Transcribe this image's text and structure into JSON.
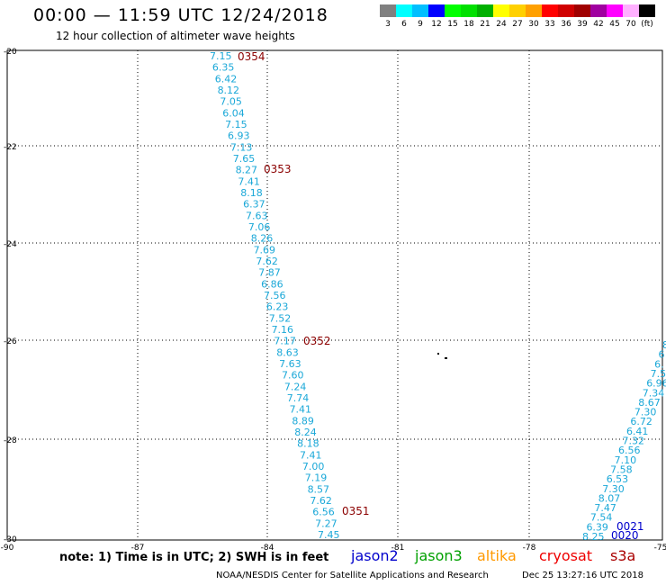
{
  "header": {
    "title": "00:00 — 11:59 UTC 12/24/2018",
    "subtitle": "12 hour collection of altimeter wave heights"
  },
  "legend": {
    "colors": [
      "#808080",
      "#00ffff",
      "#00bfff",
      "#0000ff",
      "#00ff00",
      "#00e000",
      "#00b000",
      "#ffff00",
      "#ffd000",
      "#ffa000",
      "#ff0000",
      "#d00000",
      "#a00000",
      "#a000a0",
      "#ff00ff",
      "#ffb0ff",
      "#000000"
    ],
    "labels": [
      "3",
      "6",
      "9",
      "12",
      "15",
      "18",
      "21",
      "24",
      "27",
      "30",
      "33",
      "36",
      "39",
      "42",
      "45",
      "70",
      "(ft)"
    ]
  },
  "axes": {
    "lat_labels": [
      "-20",
      "-22",
      "-24",
      "-26",
      "-28",
      "-30"
    ],
    "lon_labels": [
      "-90",
      "-87",
      "-84",
      "-81",
      "-78",
      "-75"
    ]
  },
  "tracks": {
    "track_a": [
      "7.15",
      "6.35",
      "6.42",
      "8.12",
      "7.05",
      "6.04",
      "7.15",
      "6.93",
      "7.13",
      "7.65",
      "8.27",
      "7.41",
      "8.18",
      "6.37",
      "7.63",
      "7.06",
      "8.26",
      "7.69",
      "7.62",
      "7.87",
      "6.86",
      "7.56",
      "6.23",
      "7.52",
      "7.16",
      "7.17",
      "8.63",
      "7.63",
      "7.60",
      "7.24",
      "7.74",
      "7.41",
      "8.89",
      "8.24",
      "8.18",
      "7.41",
      "7.00",
      "7.19",
      "8.57",
      "7.62",
      "6.56",
      "7.27",
      "7.45"
    ],
    "track_a_times": [
      "0354",
      "0353",
      "0352",
      "0351"
    ],
    "track_b": [
      "8",
      "6",
      "6.",
      "7.5",
      "6.96",
      "7.34",
      "8.67",
      "7.30",
      "6.72",
      "6.41",
      "7.32",
      "6.56",
      "7.10",
      "7.58",
      "6.53",
      "7.30",
      "8.07",
      "7.47",
      "7.54",
      "6.39",
      "8.25"
    ],
    "track_b_times": [
      "0021",
      "0020"
    ]
  },
  "note": "note: 1) Time is in UTC; 2) SWH is in feet",
  "satellites": [
    {
      "name": "jason2",
      "color": "#0000cc"
    },
    {
      "name": "jason3",
      "color": "#00a000"
    },
    {
      "name": "altika",
      "color": "#ff9900"
    },
    {
      "name": "cryosat",
      "color": "#ee0000"
    },
    {
      "name": "s3a",
      "color": "#aa0000"
    }
  ],
  "footer": {
    "credit": "NOAA/NESDIS Center for Satellite Applications and Research",
    "generated": "Dec 25 13:27:16 UTC 2018"
  },
  "colors": {
    "track_value": "#1ba8d8",
    "time_label_a": "#8b0000",
    "time_label_b": "#0000cc",
    "grid": "#000000"
  }
}
